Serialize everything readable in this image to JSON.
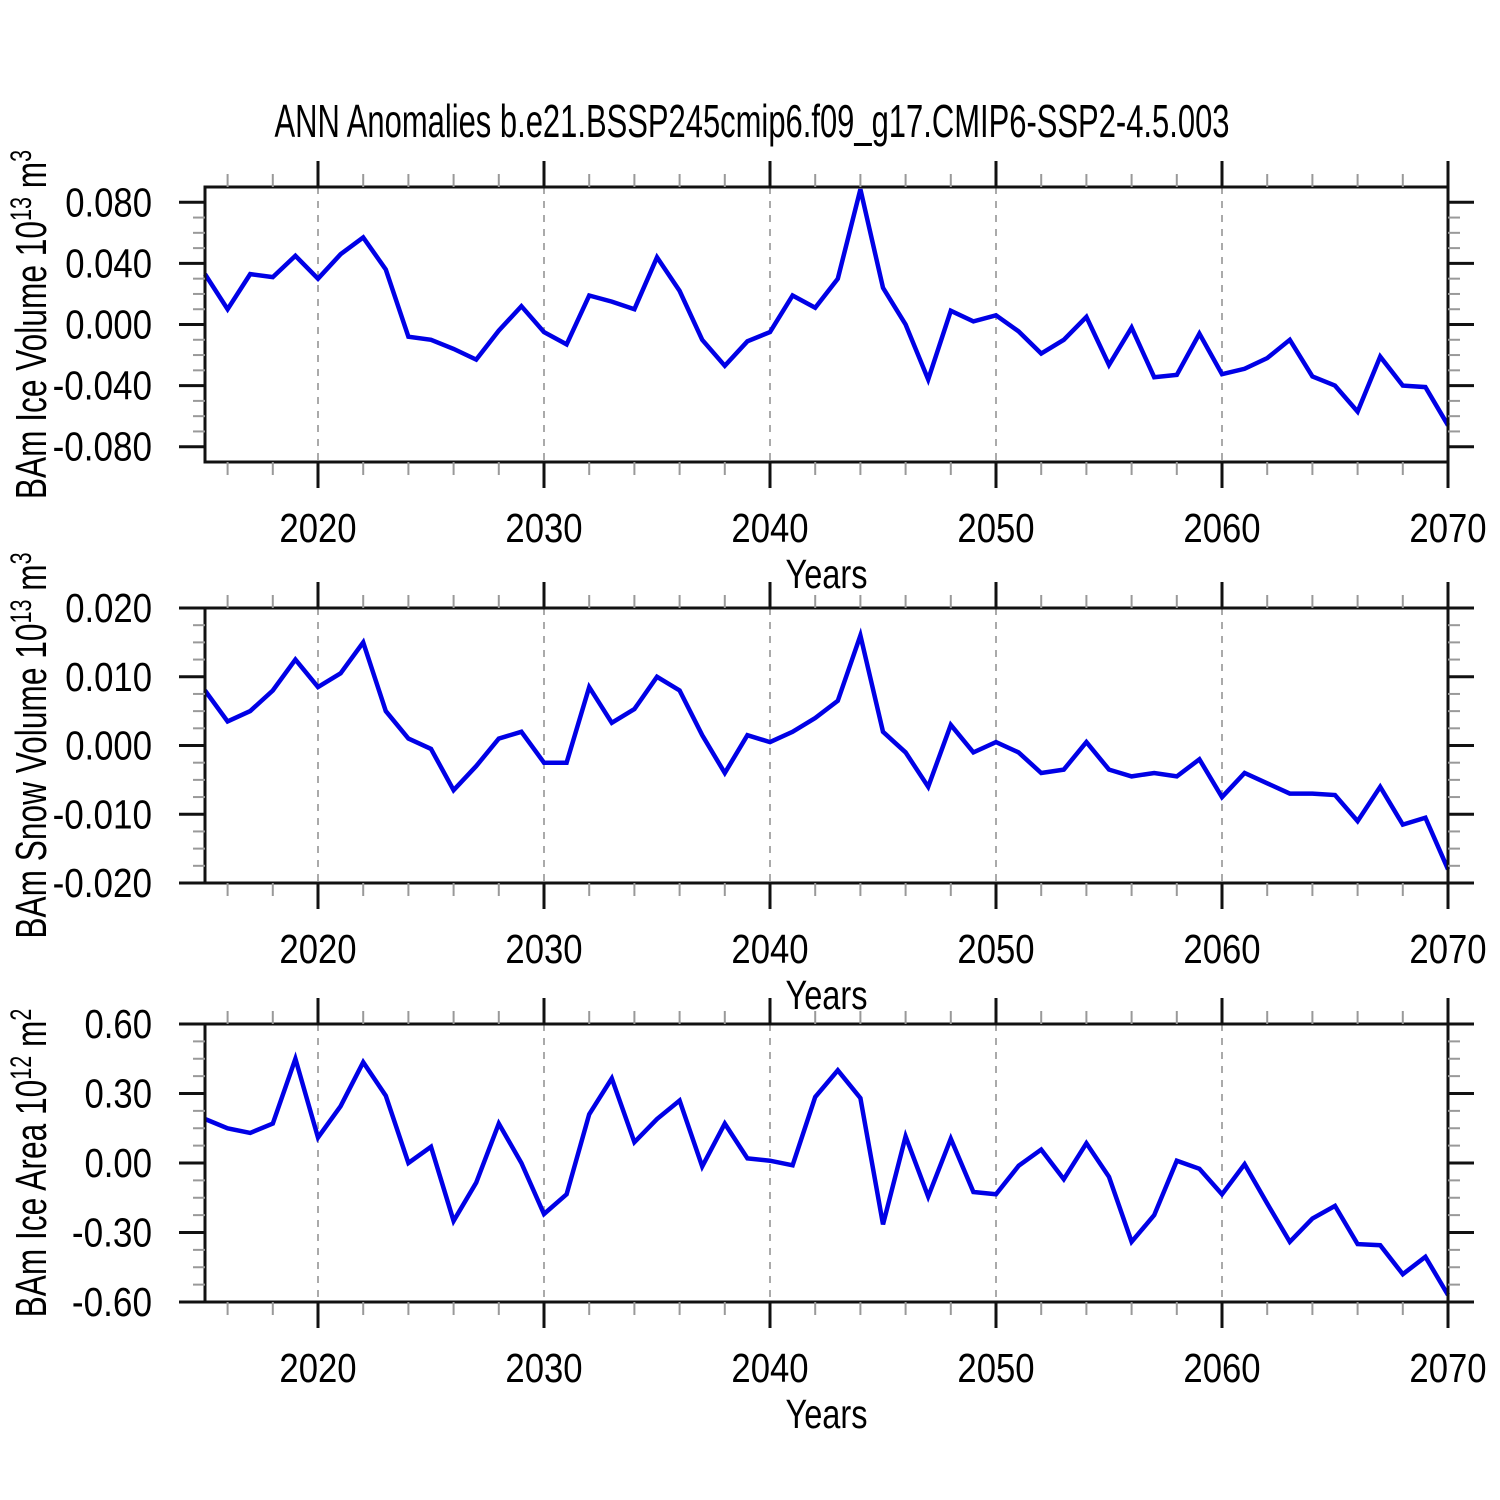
{
  "title": "ANN Anomalies b.e21.BSSP245cmip6.f09_g17.CMIP6-SSP2-4.5.003",
  "chart_data": {
    "type": "line",
    "title": "ANN Anomalies b.e21.BSSP245cmip6.f09_g17.CMIP6-SSP2-4.5.003",
    "xlabel": "Years",
    "x_start": 2015,
    "x_end": 2070,
    "x_major_ticks": [
      2020,
      2030,
      2040,
      2050,
      2060,
      2070
    ],
    "x_tick_labels": [
      "2020",
      "2030",
      "2040",
      "2050",
      "2060",
      "2070"
    ],
    "x_minor_step_years": 2,
    "decade_gridlines": [
      2020,
      2030,
      2040,
      2050,
      2060
    ],
    "grid": "dashed-vertical-decades",
    "legend": "none",
    "line_color": "#0000e6",
    "frame_color": "#111111",
    "minor_tick_color": "#999999",
    "gridline_color": "#aaaaaa",
    "panels": [
      {
        "name": "ice-volume",
        "ylabel_parts": [
          {
            "t": "BAm Ice Volume 10"
          },
          {
            "t": "13",
            "sup": true
          },
          {
            "t": " m"
          },
          {
            "t": "3",
            "sup": true
          }
        ],
        "ylabel_plain": "BAm Ice Volume 10^13 m^3",
        "ylim": [
          -0.09,
          0.09
        ],
        "y_major_ticks": [
          -0.08,
          -0.04,
          0,
          0.04,
          0.08
        ],
        "y_tick_labels": [
          "-0.080",
          "-0.040",
          "0.000",
          "0.040",
          "0.080"
        ],
        "y_minor_step": 0.01,
        "x_years_start": 2015,
        "values": [
          0.033,
          0.01,
          0.033,
          0.031,
          0.045,
          0.03,
          0.046,
          0.057,
          0.036,
          -0.008,
          -0.01,
          -0.016,
          -0.023,
          -0.004,
          0.012,
          -0.005,
          -0.013,
          0.019,
          0.015,
          0.01,
          0.044,
          0.022,
          -0.01,
          -0.027,
          -0.011,
          -0.005,
          0.019,
          0.011,
          0.03,
          0.0885,
          0.024,
          0.0,
          -0.036,
          0.009,
          0.002,
          0.006,
          -0.0045,
          -0.019,
          -0.01,
          0.005,
          -0.0265,
          -0.002,
          -0.0345,
          -0.033,
          -0.006,
          -0.0325,
          -0.029,
          -0.022,
          -0.01,
          -0.034,
          -0.04,
          -0.057,
          -0.021,
          -0.04,
          -0.041,
          -0.066
        ]
      },
      {
        "name": "snow-volume",
        "ylabel_parts": [
          {
            "t": "BAm Snow Volume 10"
          },
          {
            "t": "13",
            "sup": true
          },
          {
            "t": " m"
          },
          {
            "t": "3",
            "sup": true
          }
        ],
        "ylabel_plain": "BAm Snow Volume 10^13 m^3",
        "ylim": [
          -0.02,
          0.02
        ],
        "y_major_ticks": [
          -0.02,
          -0.01,
          0,
          0.01,
          0.02
        ],
        "y_tick_labels": [
          "-0.020",
          "-0.010",
          "0.000",
          "0.010",
          "0.020"
        ],
        "y_minor_step": 0.0025,
        "x_years_start": 2015,
        "values": [
          0.008,
          0.0035,
          0.005,
          0.008,
          0.0125,
          0.0085,
          0.0105,
          0.015,
          0.005,
          0.001,
          -0.0005,
          -0.0065,
          -0.003,
          0.001,
          0.002,
          -0.0025,
          -0.0025,
          0.0085,
          0.0033,
          0.0053,
          0.01,
          0.008,
          0.0015,
          -0.004,
          0.0015,
          0.0005,
          0.002,
          0.004,
          0.0065,
          0.016,
          0.002,
          -0.001,
          -0.006,
          0.003,
          -0.001,
          0.0005,
          -0.001,
          -0.004,
          -0.0035,
          0.0005,
          -0.0035,
          -0.0045,
          -0.004,
          -0.0045,
          -0.002,
          -0.0075,
          -0.004,
          -0.0055,
          -0.007,
          -0.007,
          -0.0072,
          -0.011,
          -0.006,
          -0.0115,
          -0.0105,
          -0.018
        ]
      },
      {
        "name": "ice-area",
        "ylabel_parts": [
          {
            "t": "BAm Ice Area 10"
          },
          {
            "t": "12",
            "sup": true
          },
          {
            "t": " m"
          },
          {
            "t": "2",
            "sup": true
          }
        ],
        "ylabel_plain": "BAm Ice Area 10^12 m^2",
        "ylim": [
          -0.6,
          0.6
        ],
        "y_major_ticks": [
          -0.6,
          -0.3,
          0,
          0.3,
          0.6
        ],
        "y_tick_labels": [
          "-0.60",
          "-0.30",
          "0.00",
          "0.30",
          "0.60"
        ],
        "y_minor_step": 0.075,
        "x_years_start": 2015,
        "values": [
          0.19,
          0.15,
          0.13,
          0.17,
          0.45,
          0.11,
          0.245,
          0.435,
          0.29,
          0.0,
          0.07,
          -0.25,
          -0.085,
          0.17,
          0.0,
          -0.22,
          -0.135,
          0.21,
          0.365,
          0.09,
          0.19,
          0.27,
          -0.015,
          0.17,
          0.02,
          0.01,
          -0.01,
          0.285,
          0.4,
          0.28,
          -0.265,
          0.115,
          -0.145,
          0.105,
          -0.125,
          -0.135,
          -0.012,
          0.058,
          -0.07,
          0.085,
          -0.06,
          -0.34,
          -0.225,
          0.01,
          -0.025,
          -0.135,
          -0.005,
          -0.175,
          -0.34,
          -0.24,
          -0.185,
          -0.35,
          -0.355,
          -0.48,
          -0.405,
          -0.57
        ]
      }
    ]
  }
}
